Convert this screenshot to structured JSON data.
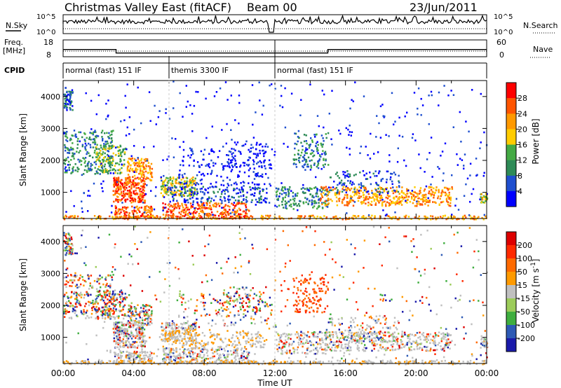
{
  "header": {
    "title": "Christmas Valley East (fitACF)",
    "beam": "Beam 00",
    "date": "23/Jun/2011"
  },
  "strips": {
    "nsky_label": "N.Sky",
    "nsearch_label": "N.Search",
    "noise_ticks": [
      "10^5",
      "10^0"
    ],
    "freq_label_1": "Freq.",
    "freq_label_2": "[MHz]",
    "freq_ticks": [
      "18",
      "8"
    ],
    "nave_label": "Nave",
    "nave_ticks": [
      "60",
      "0"
    ],
    "cpid_label": "CPID",
    "cpid_segments": [
      {
        "label": "normal (fast) 151 IF",
        "start_hour": 0,
        "end_hour": 6
      },
      {
        "label": "themis 3300 IF",
        "start_hour": 6,
        "end_hour": 12
      },
      {
        "label": "normal (fast) 151 IF",
        "start_hour": 12,
        "end_hour": 24
      }
    ]
  },
  "panels": {
    "ylabel": "Slant Range [km]",
    "xlabel": "Time UT",
    "power_colorbar_label": "Power [dB]",
    "power_colorbar_ticks": [
      "28",
      "24",
      "20",
      "16",
      "12",
      "8",
      "4"
    ],
    "velocity_colorbar_label": "Velocity [m s",
    "velocity_colorbar_sup": "-1",
    "velocity_colorbar_tail": "]",
    "velocity_colorbar_ticks": [
      "200",
      "100",
      "50",
      "15",
      "-15",
      "-50",
      "-100",
      "-200"
    ]
  },
  "colors": {
    "power": [
      "#0000ff",
      "#1f4fcf",
      "#2e8b57",
      "#44aa44",
      "#ffcc00",
      "#ff9900",
      "#ff5500",
      "#ff0000"
    ],
    "velocity": [
      "#1a1aaa",
      "#2d5ab5",
      "#3fae3f",
      "#9ccc5a",
      "#c0c0c0",
      "#ff9a00",
      "#ff6a00",
      "#ff2a00",
      "#dd0000"
    ]
  },
  "chart_data": [
    {
      "type": "line",
      "x_range": [
        0,
        24
      ],
      "x_ticks": [
        "00:00",
        "04:00",
        "08:00",
        "12:00",
        "16:00",
        "20:00",
        "00:00"
      ],
      "frequency_mhz": [
        {
          "start_hour": 0,
          "end_hour": 3,
          "value": 12.3
        },
        {
          "start_hour": 3,
          "end_hour": 12,
          "value": 10.2
        },
        {
          "start_hour": 12,
          "end_hour": 15,
          "value": 10.2
        },
        {
          "start_hour": 15,
          "end_hour": 24,
          "value": 12.3
        }
      ],
      "ylim": [
        8,
        18
      ]
    },
    {
      "type": "heatmap",
      "ylabel": "Slant Range [km]",
      "xlabel": "Time UT",
      "x_range": [
        0,
        24
      ],
      "y_range": [
        180,
        4500
      ],
      "y_ticks": [
        1000,
        2000,
        3000,
        4000
      ],
      "colorbar": "Power [dB]",
      "colorbar_range": [
        0,
        30
      ]
    },
    {
      "type": "heatmap",
      "ylabel": "Slant Range [km]",
      "xlabel": "Time UT",
      "x_range": [
        0,
        24
      ],
      "y_range": [
        180,
        4500
      ],
      "y_ticks": [
        1000,
        2000,
        3000,
        4000
      ],
      "colorbar": "Velocity [m s-1]",
      "colorbar_range": [
        -250,
        250
      ]
    }
  ]
}
